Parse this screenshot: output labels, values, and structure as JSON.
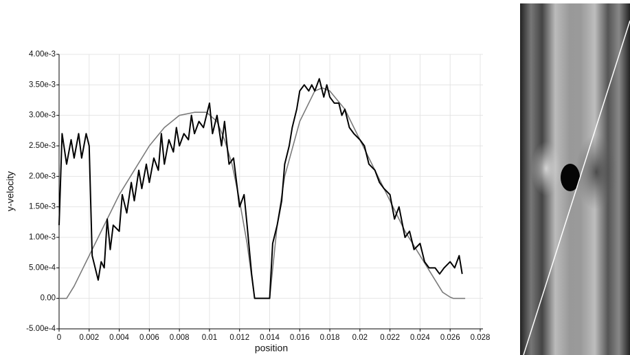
{
  "chart_data": {
    "type": "line",
    "x_label": "position",
    "y_label": "y-velocity",
    "xlim": [
      0,
      0.028
    ],
    "ylim": [
      -0.0005,
      0.004
    ],
    "xticks": [
      0,
      0.002,
      0.004,
      0.006,
      0.008,
      0.01,
      0.012,
      0.014,
      0.016,
      0.018,
      0.02,
      0.022,
      0.024,
      0.026,
      0.028
    ],
    "yticks": [
      {
        "value": -0.0005,
        "label": "-5.00e-4"
      },
      {
        "value": 0,
        "label": "0.00"
      },
      {
        "value": 0.0005,
        "label": "5.00e-4"
      },
      {
        "value": 0.001,
        "label": "1.00e-3"
      },
      {
        "value": 0.0015,
        "label": "1.50e-3"
      },
      {
        "value": 0.002,
        "label": "2.00e-3"
      },
      {
        "value": 0.0025,
        "label": "2.50e-3"
      },
      {
        "value": 0.003,
        "label": "3.00e-3"
      },
      {
        "value": 0.0035,
        "label": "3.50e-3"
      },
      {
        "value": 0.004,
        "label": "4.00e-3"
      }
    ],
    "grid": true,
    "series": [
      {
        "color": "#7a7a7a",
        "x": [
          0,
          0.0005,
          0.001,
          0.002,
          0.003,
          0.004,
          0.005,
          0.006,
          0.007,
          0.008,
          0.009,
          0.0098,
          0.0105,
          0.011,
          0.0115,
          0.012,
          0.0125,
          0.013,
          0.014,
          0.0145,
          0.015,
          0.016,
          0.017,
          0.0175,
          0.018,
          0.019,
          0.02,
          0.021,
          0.022,
          0.023,
          0.024,
          0.025,
          0.0255,
          0.026,
          0.0262,
          0.027
        ],
        "values": [
          0,
          0,
          0.0002,
          0.0007,
          0.0012,
          0.0017,
          0.0021,
          0.0025,
          0.0028,
          0.003,
          0.00305,
          0.00305,
          0.0029,
          0.0026,
          0.0022,
          0.0016,
          0.0009,
          0,
          0,
          0.0012,
          0.002,
          0.0029,
          0.0034,
          0.00345,
          0.0034,
          0.0031,
          0.0026,
          0.0021,
          0.0016,
          0.0011,
          0.0007,
          0.0003,
          0.0001,
          2e-05,
          0,
          0
        ]
      },
      {
        "color": "#000000",
        "x": [
          0,
          0.0002,
          0.0005,
          0.0008,
          0.001,
          0.0013,
          0.0015,
          0.0018,
          0.002,
          0.0022,
          0.0024,
          0.0026,
          0.0028,
          0.003,
          0.0032,
          0.0034,
          0.0036,
          0.004,
          0.0042,
          0.0045,
          0.0048,
          0.005,
          0.0053,
          0.0055,
          0.0058,
          0.006,
          0.0063,
          0.0066,
          0.0068,
          0.007,
          0.0073,
          0.0076,
          0.0078,
          0.008,
          0.0083,
          0.0086,
          0.0088,
          0.009,
          0.0093,
          0.0096,
          0.01,
          0.0102,
          0.0105,
          0.0108,
          0.011,
          0.0113,
          0.0116,
          0.0118,
          0.012,
          0.0123,
          0.0125,
          0.0128,
          0.013,
          0.0135,
          0.014,
          0.0142,
          0.0145,
          0.0148,
          0.015,
          0.0153,
          0.0155,
          0.0158,
          0.016,
          0.0163,
          0.0166,
          0.0168,
          0.017,
          0.0173,
          0.0176,
          0.0178,
          0.018,
          0.0183,
          0.0186,
          0.0188,
          0.019,
          0.0193,
          0.0196,
          0.02,
          0.0203,
          0.0206,
          0.021,
          0.0213,
          0.0216,
          0.022,
          0.0223,
          0.0226,
          0.023,
          0.0233,
          0.0236,
          0.024,
          0.0243,
          0.0246,
          0.025,
          0.0253,
          0.0256,
          0.026,
          0.0263,
          0.0266,
          0.0268
        ],
        "values": [
          0.0012,
          0.0027,
          0.0022,
          0.0026,
          0.0023,
          0.0027,
          0.0023,
          0.0027,
          0.0025,
          0.0007,
          0.0005,
          0.0003,
          0.0006,
          0.0005,
          0.0013,
          0.0008,
          0.0012,
          0.0011,
          0.0017,
          0.0014,
          0.0019,
          0.0016,
          0.0021,
          0.0018,
          0.0022,
          0.0019,
          0.0023,
          0.0021,
          0.0027,
          0.0022,
          0.0026,
          0.0024,
          0.0028,
          0.0025,
          0.0027,
          0.0026,
          0.003,
          0.0027,
          0.0029,
          0.0028,
          0.0032,
          0.0027,
          0.003,
          0.0025,
          0.0029,
          0.0022,
          0.0023,
          0.0019,
          0.0015,
          0.0017,
          0.0012,
          0.0004,
          0,
          0,
          0,
          0.0009,
          0.0012,
          0.0016,
          0.0022,
          0.0025,
          0.0028,
          0.0031,
          0.0034,
          0.0035,
          0.0034,
          0.0035,
          0.0034,
          0.0036,
          0.0033,
          0.0035,
          0.0033,
          0.0032,
          0.0032,
          0.003,
          0.0031,
          0.0028,
          0.0027,
          0.0026,
          0.0025,
          0.0022,
          0.0021,
          0.0019,
          0.0018,
          0.0017,
          0.0013,
          0.0015,
          0.001,
          0.0011,
          0.0008,
          0.0009,
          0.0006,
          0.0005,
          0.0005,
          0.0004,
          0.0005,
          0.0006,
          0.0005,
          0.0007,
          0.0004
        ]
      }
    ]
  }
}
